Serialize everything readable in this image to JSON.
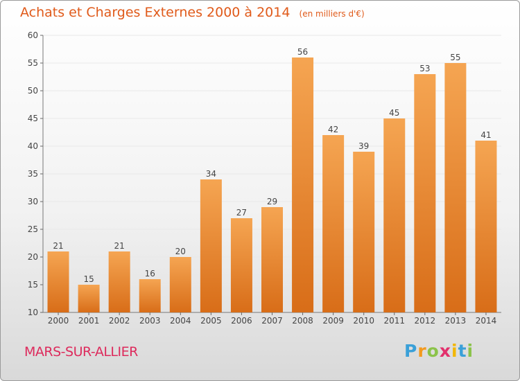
{
  "title": "Achats et Charges Externes 2000 à 2014",
  "subtitle": "(en milliers d'€)",
  "place": "MARS-SUR-ALLIER",
  "brand": {
    "letters": [
      "P",
      "r",
      "o",
      "x",
      "i",
      "t",
      "i"
    ],
    "colors": [
      "#3aa0d8",
      "#f39a1e",
      "#8bc34a",
      "#e2306c",
      "#f2b705",
      "#3aa0d8",
      "#8bc34a"
    ]
  },
  "chart_data": {
    "type": "bar",
    "title": "Achats et Charges Externes 2000 à 2014",
    "subtitle": "(en milliers d'€)",
    "categories": [
      "2000",
      "2001",
      "2002",
      "2003",
      "2004",
      "2005",
      "2006",
      "2007",
      "2008",
      "2009",
      "2010",
      "2011",
      "2012",
      "2013",
      "2014"
    ],
    "values": [
      21,
      15,
      21,
      16,
      20,
      34,
      27,
      29,
      56,
      42,
      39,
      45,
      53,
      55,
      41
    ],
    "ylim": [
      10,
      60
    ],
    "yticks": [
      10,
      15,
      20,
      25,
      30,
      35,
      40,
      45,
      50,
      55,
      60
    ],
    "grid": true,
    "bar_color_top": "#f5a552",
    "bar_color_bottom": "#d86d18",
    "grid_color": "#e8e8e8"
  }
}
